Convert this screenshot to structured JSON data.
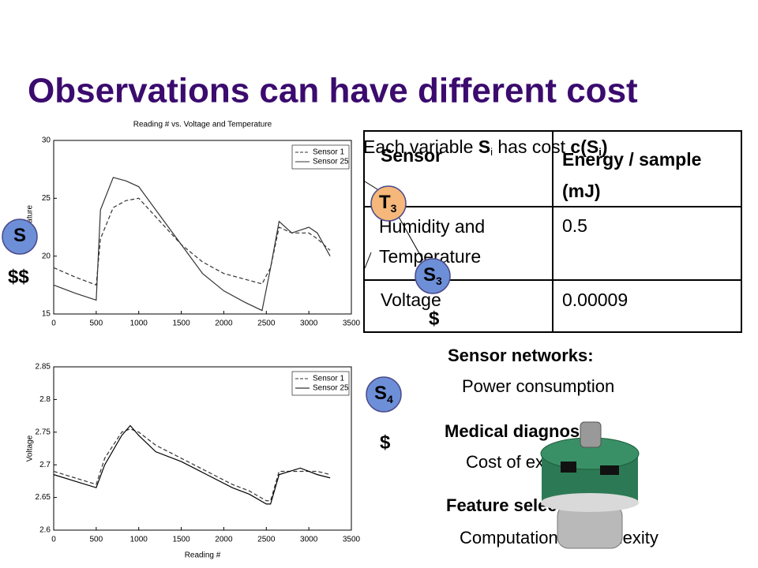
{
  "title": "Observations can have different cost",
  "cost_note": {
    "before": "Each variable ",
    "var": "S",
    "sub": "i",
    "middle": " has cost ",
    "fn": "c(S",
    "sub2": "i",
    "after": ")"
  },
  "table": {
    "header": [
      "Sensor",
      "Energy / sample (mJ)"
    ],
    "rows": [
      [
        "Humidity and Temperature",
        "0.5"
      ],
      [
        "Voltage",
        "0.00009"
      ]
    ]
  },
  "nodes": [
    {
      "label": "S",
      "color": "#6d8fd8"
    },
    {
      "label": "T",
      "sub": "3",
      "color": "#f5b77a"
    },
    {
      "label": "S",
      "sub": "3",
      "color": "#6d8fd8"
    },
    {
      "label": "S",
      "sub": "4",
      "color": "#6d8fd8"
    }
  ],
  "costs": [
    "$$",
    "$",
    "$"
  ],
  "applications": [
    {
      "heading": "Sensor networks:",
      "detail": "Power consumption"
    },
    {
      "heading": "Medical diagnosis:",
      "detail": "Cost of examinations"
    },
    {
      "heading": "Feature selection:",
      "detail": "Computational complexity"
    }
  ],
  "chart_data": [
    {
      "type": "line",
      "title": "Reading # vs. Voltage and Temperature",
      "ylabel": "Temperature",
      "legend": "upper right",
      "x": [
        0,
        250,
        500,
        550,
        700,
        850,
        1000,
        1250,
        1500,
        1750,
        2000,
        2250,
        2450,
        2550,
        2650,
        2800,
        3000,
        3100,
        3250
      ],
      "series": [
        {
          "name": "Sensor 1",
          "color": "#333333",
          "style": "dashed",
          "values": [
            19,
            18.2,
            17.5,
            21.5,
            24.2,
            24.8,
            25,
            23,
            21,
            19.5,
            18.5,
            18,
            17.6,
            19,
            22.5,
            22,
            22,
            21.5,
            20.5
          ]
        },
        {
          "name": "Sensor 25",
          "color": "#333333",
          "style": "solid",
          "values": [
            17.5,
            16.8,
            16.2,
            24,
            26.8,
            26.5,
            26,
            23.5,
            21,
            18.5,
            17,
            16,
            15.3,
            19,
            23,
            22,
            22.5,
            22,
            20
          ]
        }
      ],
      "xlim": [
        0,
        3500
      ],
      "xticks": [
        0,
        500,
        1000,
        1500,
        2000,
        2500,
        3000,
        3500
      ],
      "ylim": [
        15,
        30
      ],
      "yticks": [
        15,
        20,
        25,
        30
      ]
    },
    {
      "type": "line",
      "xlabel": "Reading #",
      "ylabel": "Voltage",
      "legend": "upper right",
      "x": [
        0,
        250,
        500,
        600,
        800,
        900,
        1000,
        1200,
        1500,
        1800,
        2100,
        2300,
        2500,
        2550,
        2650,
        2900,
        3100,
        3250
      ],
      "series": [
        {
          "name": "Sensor 1",
          "color": "#333333",
          "style": "dashed",
          "values": [
            2.69,
            2.68,
            2.67,
            2.71,
            2.75,
            2.755,
            2.75,
            2.73,
            2.71,
            2.69,
            2.67,
            2.66,
            2.645,
            2.645,
            2.69,
            2.69,
            2.69,
            2.685
          ]
        },
        {
          "name": "Sensor 25",
          "color": "#000000",
          "style": "solid",
          "values": [
            2.685,
            2.675,
            2.665,
            2.7,
            2.745,
            2.76,
            2.745,
            2.72,
            2.705,
            2.685,
            2.665,
            2.655,
            2.64,
            2.64,
            2.685,
            2.695,
            2.685,
            2.68
          ]
        }
      ],
      "xlim": [
        0,
        3500
      ],
      "xticks": [
        0,
        500,
        1000,
        1500,
        2000,
        2500,
        3000,
        3500
      ],
      "ylim": [
        2.6,
        2.85
      ],
      "yticks": [
        2.6,
        2.65,
        2.7,
        2.75,
        2.8,
        2.85
      ]
    }
  ]
}
